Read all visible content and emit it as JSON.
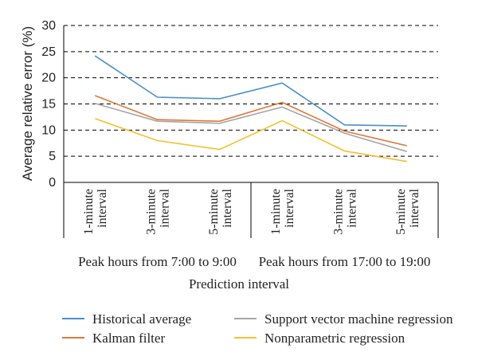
{
  "chart_data": {
    "type": "line",
    "categories": [
      [
        "1-minute",
        "interval"
      ],
      [
        "3-minute",
        "interval"
      ],
      [
        "5-minute",
        "interval"
      ],
      [
        "1-minute",
        "interval"
      ],
      [
        "3-minute",
        "interval"
      ],
      [
        "5-minute",
        "interval"
      ]
    ],
    "groups": [
      "Peak hours from 7:00 to 9:00",
      "Peak hours from 17:00 to 19:00"
    ],
    "series": [
      {
        "name": "Historical average",
        "color": "#4a90c8",
        "values": [
          24.2,
          16.3,
          16.0,
          19.0,
          11.0,
          10.8
        ]
      },
      {
        "name": "Kalman filter",
        "color": "#e0773a",
        "values": [
          16.6,
          12.0,
          11.7,
          15.3,
          9.8,
          7.0
        ]
      },
      {
        "name": "Support vector machine regression",
        "color": "#a6a6a6",
        "values": [
          15.1,
          11.7,
          11.3,
          14.4,
          9.4,
          5.9
        ]
      },
      {
        "name": "Nonparametric regression",
        "color": "#f2c12e",
        "values": [
          12.2,
          8.0,
          6.3,
          11.8,
          6.0,
          4.0
        ]
      }
    ],
    "ylabel": "Average relative error (%)",
    "xlabel": "Prediction interval",
    "ylim": [
      0,
      30
    ],
    "yticks": [
      0,
      5,
      10,
      15,
      20,
      25,
      30
    ],
    "grid": true,
    "legend": "bottom"
  }
}
